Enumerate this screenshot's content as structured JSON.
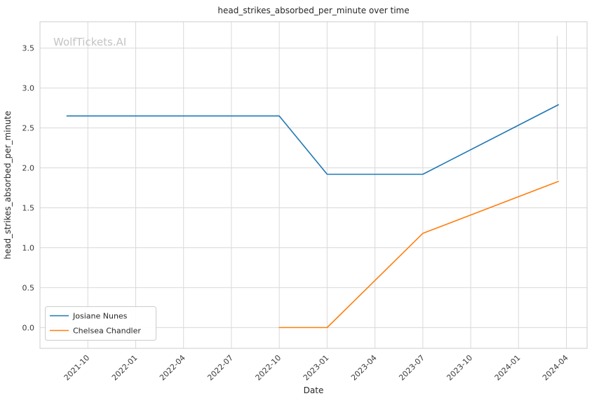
{
  "chart_data": {
    "type": "line",
    "title": "head_strikes_absorbed_per_minute over time",
    "xlabel": "Date",
    "ylabel": "head_strikes_absorbed_per_minute",
    "watermark": "WolfTickets.AI",
    "grid": true,
    "legend_position": "lower left",
    "xlim": [
      "2021-07-01",
      "2024-05-10"
    ],
    "ylim": [
      -0.26,
      3.83
    ],
    "x_ticks": [
      "2021-10",
      "2022-01",
      "2022-04",
      "2022-07",
      "2022-10",
      "2023-01",
      "2023-04",
      "2023-07",
      "2023-10",
      "2024-01",
      "2024-04"
    ],
    "y_ticks": [
      0.0,
      0.5,
      1.0,
      1.5,
      2.0,
      2.5,
      3.0,
      3.5
    ],
    "series": [
      {
        "name": "Josiane Nunes",
        "color": "#1f77b4",
        "points": [
          [
            "2021-08-22",
            2.65
          ],
          [
            "2022-10-01",
            2.65
          ],
          [
            "2023-01-01",
            1.92
          ],
          [
            "2023-07-01",
            1.92
          ],
          [
            "2024-03-16",
            2.79
          ]
        ]
      },
      {
        "name": "Chelsea Chandler",
        "color": "#ff7f0e",
        "points": [
          [
            "2022-10-01",
            0.0
          ],
          [
            "2023-01-01",
            0.0
          ],
          [
            "2023-07-01",
            1.18
          ],
          [
            "2024-03-16",
            1.83
          ]
        ]
      }
    ],
    "vertical_line": {
      "x": "2024-03-14",
      "y_from": 1.85,
      "y_to": 3.65,
      "color": "#d6d6d6"
    },
    "colors": {
      "grid": "#d9d9d9",
      "spine": "#cccccc",
      "text": "#262626",
      "tick_text": "#3b3b3b",
      "watermark": "#c4c4c4"
    }
  }
}
